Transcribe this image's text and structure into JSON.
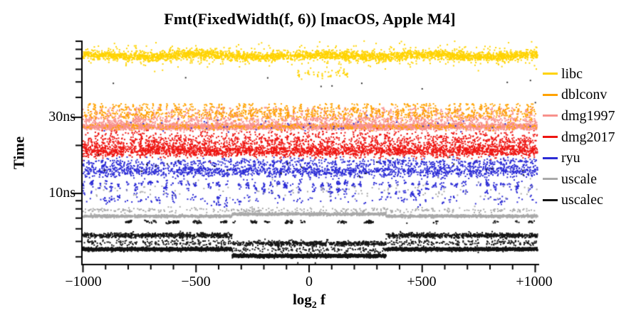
{
  "chart_data": {
    "type": "scatter",
    "title": "Fmt(FixedWidth(f, 6)) [macOS, Apple M4]",
    "xlabel_main": "log",
    "xlabel_sub": "2",
    "xlabel_tail": " f",
    "ylabel": "Time",
    "x_range": [
      -1000,
      1010
    ],
    "x_major_ticks": [
      -1000,
      -500,
      0,
      500,
      1000
    ],
    "x_tick_labels": [
      "−1000",
      "−500",
      "0",
      "+500",
      "+1000"
    ],
    "x_minor_step": 100,
    "y_scale": "log",
    "y_major_ticks": [
      {
        "ns": 30,
        "label": "30ns"
      },
      {
        "ns": 10,
        "label": "10ns"
      }
    ],
    "y_minor_ticks_ns": [
      90,
      80,
      70,
      60,
      50,
      40,
      20,
      9,
      8,
      7,
      6,
      5,
      4
    ],
    "legend_position": "right",
    "series": [
      {
        "name": "libc",
        "color": "#FFD300",
        "median_ns": 73,
        "components": [
          {
            "t": "gauss",
            "z": 1,
            "x": [
              -1000,
              1010
            ],
            "ns": 73,
            "sig": 3.2,
            "n": 3000,
            "wave": {
              "amp": 1.8,
              "per": 160
            }
          },
          {
            "t": "gauss",
            "z": 1,
            "x": [
              -1000,
              1010
            ],
            "ns": 73.5,
            "sig": 8,
            "n": 520
          },
          {
            "t": "gauss",
            "z": 1,
            "x": [
              -60,
              170
            ],
            "ns": 57,
            "sig": 4,
            "n": 55
          }
        ]
      },
      {
        "name": "dblconv",
        "color": "#FFA200",
        "median_ns": 31.5,
        "components": [
          {
            "t": "cols",
            "z": 3,
            "x": [
              -1000,
              1010
            ],
            "period": 9,
            "y0ns": 36.5,
            "len": [
              6,
              20
            ],
            "dens": 0.55,
            "xj": 1.5
          },
          {
            "t": "gauss",
            "z": 3,
            "x": [
              -1000,
              1010
            ],
            "ns": 31.5,
            "sig": 4.5,
            "n": 700
          },
          {
            "t": "gauss",
            "z": 5,
            "x": [
              -1000,
              1010
            ],
            "ns": 26.2,
            "sig": 2.2,
            "n": 340
          }
        ]
      },
      {
        "name": "dmg1997",
        "color": "#F8918C",
        "median_ns": 26.2,
        "components": [
          {
            "t": "cols",
            "z": 2,
            "x": [
              -1000,
              1010
            ],
            "period": 9,
            "y0ns": 34.5,
            "len": [
              8,
              22
            ],
            "dens": 0.5,
            "xj": 1.5
          },
          {
            "t": "gauss",
            "z": 2,
            "x": [
              -1000,
              1010
            ],
            "ns": 28.8,
            "sig": 4,
            "n": 900
          },
          {
            "t": "gauss",
            "z": 4,
            "x": [
              -1000,
              1010
            ],
            "ns": 26.2,
            "sig": 2.3,
            "n": 3300
          }
        ]
      },
      {
        "name": "dmg2017",
        "color": "#EE1511",
        "median_ns": 18.4,
        "components": [
          {
            "t": "gauss",
            "z": 6,
            "x": [
              -1000,
              1010
            ],
            "ns": 18.4,
            "sig": 4.2,
            "n": 2500
          },
          {
            "t": "gauss",
            "z": 6,
            "x": [
              -1000,
              1010
            ],
            "ns": 20.8,
            "sig": 5,
            "n": 800
          },
          {
            "t": "cols",
            "z": 6,
            "x": [
              -1000,
              1010
            ],
            "period": 9,
            "y0ns": 22.5,
            "len": [
              8,
              26
            ],
            "dens": 0.4,
            "xj": 1.5
          },
          {
            "t": "gauss",
            "z": 6,
            "x": [
              -1000,
              1010
            ],
            "ns": 23.5,
            "sig": 3,
            "n": 240
          }
        ]
      },
      {
        "name": "ryu",
        "color": "#2B2BD5",
        "median_ns": 13.8,
        "components": [
          {
            "t": "gauss",
            "z": 7,
            "x": [
              -1000,
              1010
            ],
            "ns": 13.8,
            "sig": 4.2,
            "n": 1700
          },
          {
            "t": "gauss",
            "z": 7,
            "x": [
              -1000,
              1010
            ],
            "ns": 15.6,
            "sig": 3,
            "n": 600
          },
          {
            "t": "cols",
            "z": 7,
            "x": [
              -1000,
              1010
            ],
            "period": 10.5,
            "y0ns": 11.8,
            "len": [
              10,
              40
            ],
            "dens": 0.7,
            "xj": 1.5,
            "beads": true
          },
          {
            "t": "gauss",
            "z": 7,
            "x": [
              -1000,
              1010
            ],
            "ns": 9.1,
            "sig": 2.5,
            "n": 120
          }
        ]
      },
      {
        "name": "uscale",
        "color": "#A9A9A9",
        "median_ns": 7.3,
        "components": [
          {
            "t": "gauss",
            "z": 8,
            "x": [
              -1000,
              -340
            ],
            "ns": 7.2,
            "sig": 0.9,
            "n": 900
          },
          {
            "t": "gauss",
            "z": 8,
            "x": [
              -340,
              340
            ],
            "ns": 7.42,
            "sig": 0.9,
            "n": 950
          },
          {
            "t": "gauss",
            "z": 8,
            "x": [
              340,
              1010
            ],
            "ns": 7.2,
            "sig": 0.9,
            "n": 950
          },
          {
            "t": "gauss",
            "z": 8,
            "x": [
              -1000,
              1010
            ],
            "ns": 7.85,
            "sig": 1.8,
            "n": 320
          },
          {
            "t": "gauss",
            "z": 8,
            "x": [
              -1000,
              1010
            ],
            "ns": 10.5,
            "sig": 6,
            "n": 120
          }
        ]
      },
      {
        "name": "uscalec",
        "color": "#151515",
        "median_ns": 4.4,
        "components": [
          {
            "t": "gauss",
            "z": 9,
            "x": [
              -1000,
              1010
            ],
            "ns": 6.62,
            "sig": 1,
            "n": 260,
            "clus": 26
          },
          {
            "t": "gauss",
            "z": 9,
            "x": [
              -1000,
              -340
            ],
            "ns": 5.45,
            "sig": 1.7,
            "n": 650
          },
          {
            "t": "gauss",
            "z": 9,
            "x": [
              -340,
              340
            ],
            "ns": 4.85,
            "sig": 1.7,
            "n": 650
          },
          {
            "t": "gauss",
            "z": 9,
            "x": [
              340,
              1010
            ],
            "ns": 5.45,
            "sig": 1.7,
            "n": 680
          },
          {
            "t": "gauss",
            "z": 9,
            "x": [
              -1000,
              -340
            ],
            "ns": 4.9,
            "sig": 2.4,
            "n": 180
          },
          {
            "t": "gauss",
            "z": 9,
            "x": [
              -340,
              340
            ],
            "ns": 4.42,
            "sig": 2.2,
            "n": 160
          },
          {
            "t": "gauss",
            "z": 9,
            "x": [
              340,
              1010
            ],
            "ns": 4.9,
            "sig": 2.4,
            "n": 190
          },
          {
            "t": "gauss",
            "z": 9,
            "x": [
              -1000,
              -340
            ],
            "ns": 4.47,
            "sig": 1.1,
            "n": 1800
          },
          {
            "t": "gauss",
            "z": 9,
            "x": [
              -340,
              340
            ],
            "ns": 4.06,
            "sig": 1.1,
            "n": 2000
          },
          {
            "t": "gauss",
            "z": 9,
            "x": [
              340,
              1010
            ],
            "ns": 4.47,
            "sig": 1.1,
            "n": 1900
          },
          {
            "t": "gauss",
            "z": 9,
            "x": [
              -1000,
              1010
            ],
            "ns": 3.6,
            "sig": 1.5,
            "n": 16
          }
        ]
      }
    ],
    "extras": [
      {
        "color": "#333333",
        "t": "gauss",
        "z": 10,
        "x": [
          -1000,
          1010
        ],
        "ns": 47,
        "sig": 9,
        "n": 10
      },
      {
        "color": "#2B2BD5",
        "t": "gauss",
        "z": 10,
        "x": [
          -1000,
          1010
        ],
        "ns": 27,
        "sig": 5,
        "n": 45
      },
      {
        "color": "#151515",
        "t": "gauss",
        "z": 10,
        "x": [
          -1000,
          1010
        ],
        "ns": 15,
        "sig": 10,
        "n": 22
      }
    ]
  }
}
